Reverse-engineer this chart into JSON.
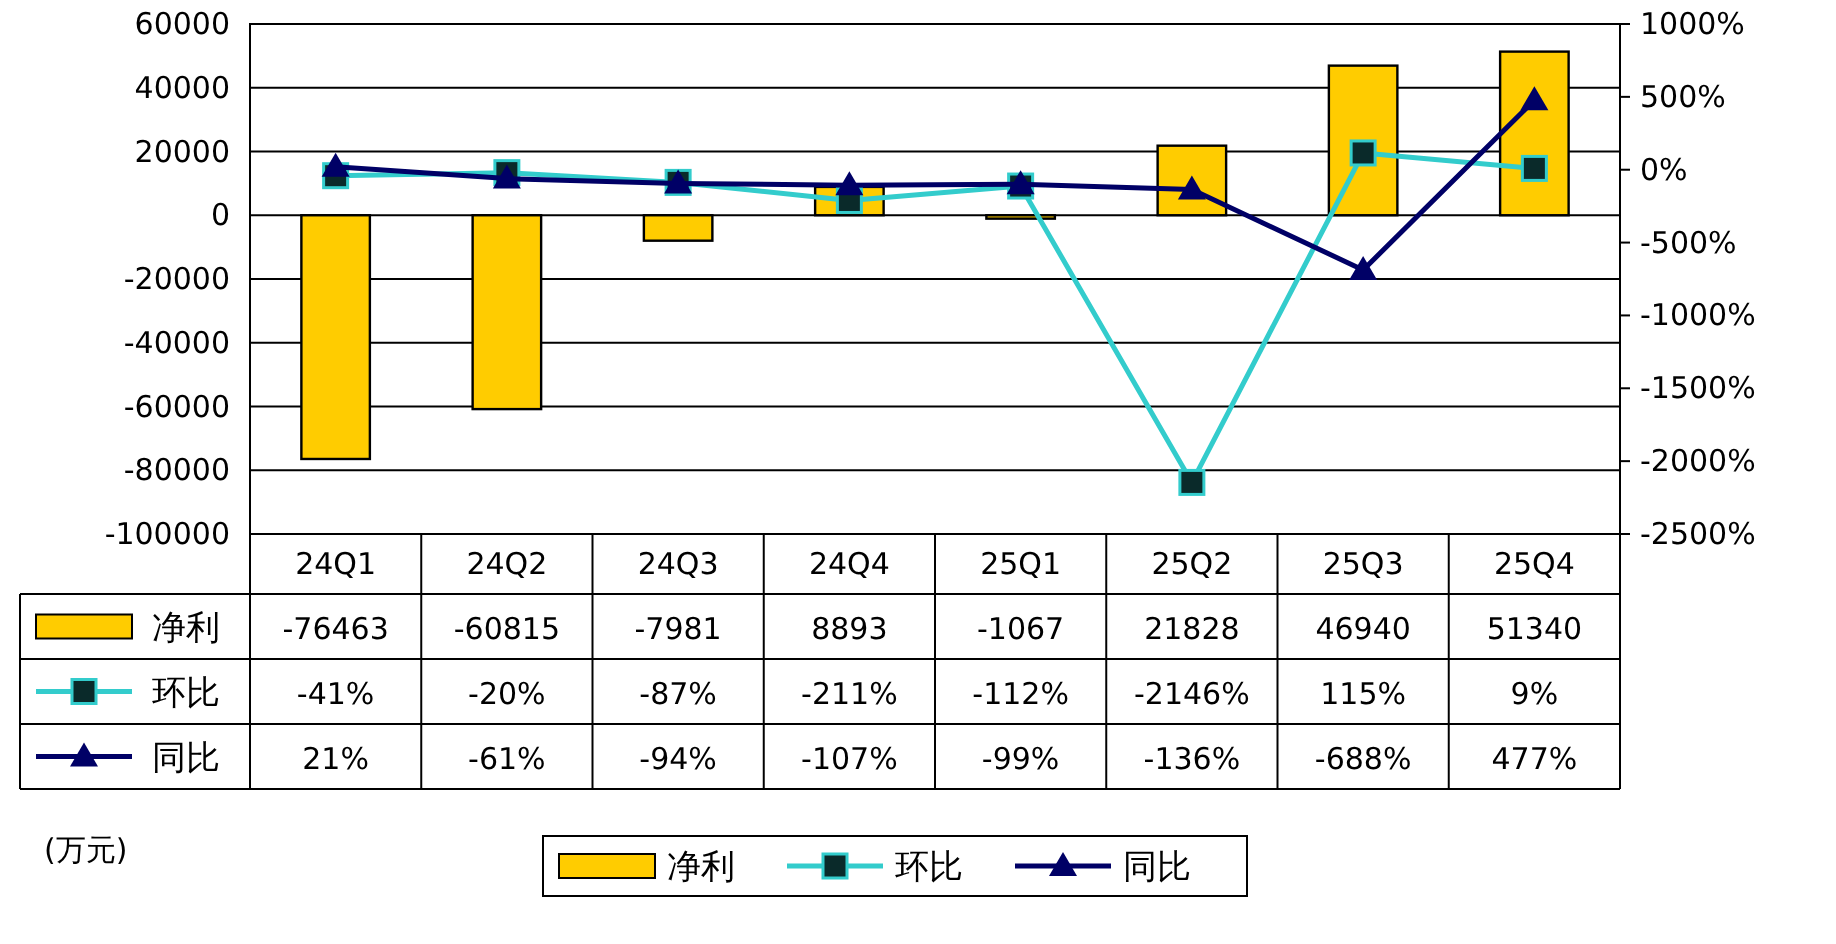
{
  "chart_data": {
    "type": "bar",
    "categories": [
      "24Q1",
      "24Q2",
      "24Q3",
      "24Q4",
      "25Q1",
      "25Q2",
      "25Q3",
      "25Q4"
    ],
    "series": [
      {
        "name": "净利",
        "color": "#ffcc00",
        "values": [
          -76463,
          -60815,
          -7981,
          8893,
          -1067,
          21828,
          46940,
          51340
        ],
        "value_labels": [
          "-76463",
          "-60815",
          "-7981",
          "8893",
          "-1067",
          "21828",
          "46940",
          "51340"
        ]
      },
      {
        "name": "环比",
        "type": "line",
        "axis": "y2",
        "color": "#33cccc",
        "marker": "square",
        "values": [
          -41,
          -20,
          -87,
          -211,
          -112,
          -2146,
          115,
          9
        ],
        "value_labels": [
          "-41%",
          "-20%",
          "-87%",
          "-211%",
          "-112%",
          "-2146%",
          "115%",
          "9%"
        ]
      },
      {
        "name": "同比",
        "type": "line",
        "axis": "y2",
        "color": "#000066",
        "marker": "triangle",
        "values": [
          21,
          -61,
          -94,
          -107,
          -99,
          -136,
          -688,
          477
        ],
        "value_labels": [
          "21%",
          "-61%",
          "-94%",
          "-107%",
          "-99%",
          "-136%",
          "-688%",
          "477%"
        ]
      }
    ],
    "ylim": [
      -100000,
      60000
    ],
    "yticks": [
      -100000,
      -80000,
      -60000,
      -40000,
      -20000,
      0,
      20000,
      40000,
      60000
    ],
    "y2lim": [
      -2500,
      1000
    ],
    "y2ticks": [
      {
        "value": -2500,
        "label": "-2500%"
      },
      {
        "value": -2000,
        "label": "-2000%"
      },
      {
        "value": -1500,
        "label": "-1500%"
      },
      {
        "value": -1000,
        "label": "-1000%"
      },
      {
        "value": -500,
        "label": "-500%"
      },
      {
        "value": 0,
        "label": "0%"
      },
      {
        "value": 500,
        "label": "500%"
      },
      {
        "value": 1000,
        "label": "1000%"
      }
    ],
    "grid": "y",
    "legend": "bottom",
    "annotations": [
      "(万元)"
    ]
  }
}
